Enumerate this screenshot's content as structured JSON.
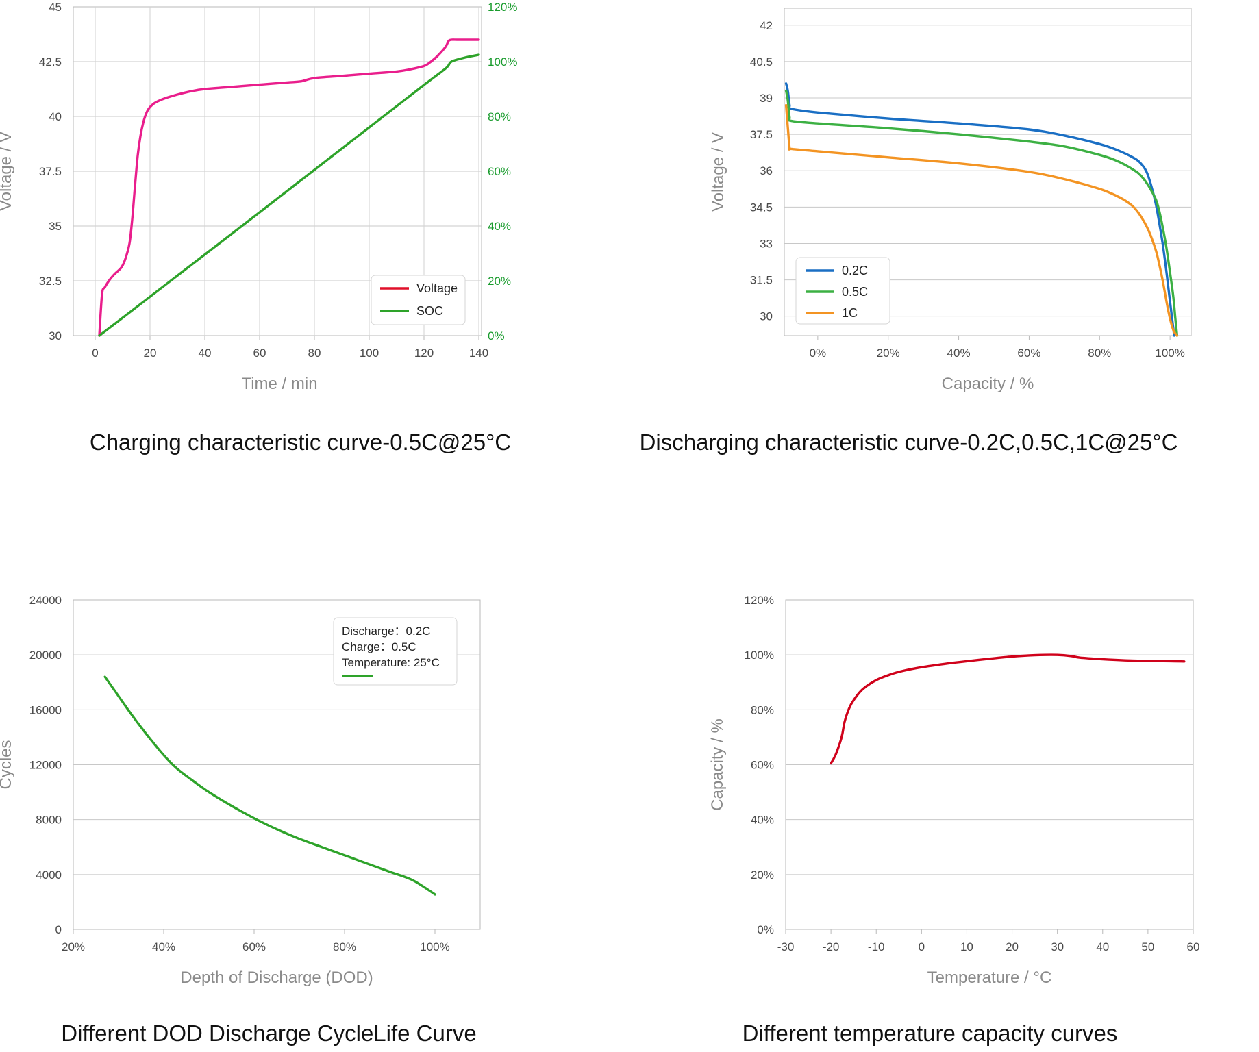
{
  "chart_data": [
    {
      "type": "line",
      "title": "Charging characteristic curve-0.5C@25°C",
      "xlabel": "Time / min",
      "ylabel": "Voltage / V",
      "xlim": [
        -8,
        141
      ],
      "x_ticks": [
        "0",
        "20",
        "40",
        "60",
        "80",
        "100",
        "120",
        "140"
      ],
      "ylim": [
        30,
        45
      ],
      "y_ticks": [
        "30",
        "32.5",
        "35",
        "37.5",
        "40",
        "42.5",
        "45"
      ],
      "y2lim": [
        0,
        120
      ],
      "y2_ticks": [
        "0%",
        "20%",
        "40%",
        "60%",
        "80%",
        "100%",
        "120%"
      ],
      "grid": true,
      "legend": "bottom-right",
      "series": [
        {
          "name": "Voltage",
          "axis": "left",
          "color": "#e91e8c",
          "legend_color": "#e0102a",
          "x": [
            1.5,
            2.5,
            3.5,
            5,
            7,
            9.5,
            11,
            12.5,
            13.5,
            14.5,
            15.5,
            16.5,
            17.5,
            18.5,
            19.5,
            21,
            23,
            26,
            30,
            35,
            40,
            50,
            60,
            70,
            75,
            80,
            90,
            100,
            110,
            115,
            120,
            122,
            124,
            126,
            128,
            129,
            130,
            132,
            135,
            140
          ],
          "y": [
            30,
            31.9,
            32.2,
            32.5,
            32.8,
            33.1,
            33.5,
            34.2,
            35.3,
            36.8,
            38.2,
            39.1,
            39.7,
            40.1,
            40.35,
            40.55,
            40.7,
            40.85,
            41.0,
            41.15,
            41.25,
            41.35,
            41.45,
            41.55,
            41.6,
            41.75,
            41.85,
            41.95,
            42.05,
            42.15,
            42.3,
            42.45,
            42.65,
            42.9,
            43.2,
            43.45,
            43.5,
            43.5,
            43.5,
            43.5
          ]
        },
        {
          "name": "SOC",
          "axis": "right",
          "color": "#2ea32a",
          "legend_color": "#2ea32a",
          "x": [
            1.5,
            10,
            20,
            40,
            60,
            80,
            100,
            120,
            128,
            130,
            135,
            140
          ],
          "y": [
            0,
            6.5,
            14.2,
            29.6,
            45,
            60.5,
            76,
            91.5,
            97.6,
            100,
            101.5,
            102.5
          ]
        }
      ]
    },
    {
      "type": "line",
      "title": "Discharging characteristic curve-0.2C,0.5C,1C@25°C",
      "xlabel": "Capacity / %",
      "ylabel": "Voltage / V",
      "xlim": [
        -9.5,
        106
      ],
      "x_ticks": [
        "0%",
        "20%",
        "40%",
        "60%",
        "80%",
        "100%"
      ],
      "ylim": [
        29.2,
        42.7
      ],
      "y_ticks": [
        "30",
        "31.5",
        "33",
        "34.5",
        "36",
        "37.5",
        "39",
        "40.5",
        "42"
      ],
      "grid": "horizontal",
      "legend": "bottom-left",
      "series": [
        {
          "name": "0.2C",
          "color": "#1a6fc4",
          "x": [
            -9,
            -8.5,
            -8,
            -7.5,
            0,
            20,
            40,
            60,
            70,
            80,
            85,
            90,
            92,
            93.5,
            95,
            96,
            97,
            98,
            99,
            100,
            100.5,
            101,
            101.2
          ],
          "y": [
            39.6,
            39.3,
            38.7,
            38.55,
            38.4,
            38.15,
            37.95,
            37.7,
            37.45,
            37.1,
            36.85,
            36.5,
            36.25,
            35.9,
            35.2,
            34.6,
            33.8,
            32.9,
            31.8,
            30.6,
            30.0,
            29.4,
            29.2
          ]
        },
        {
          "name": "0.5C",
          "color": "#3cb043",
          "x": [
            -9,
            -8.5,
            -8,
            -7.5,
            0,
            20,
            40,
            60,
            70,
            80,
            85,
            90,
            92,
            94,
            96,
            97,
            98,
            99,
            100,
            101,
            101.5,
            102
          ],
          "y": [
            39.3,
            38.9,
            38.2,
            38.05,
            37.95,
            37.75,
            37.5,
            37.2,
            37.0,
            36.65,
            36.4,
            36.0,
            35.75,
            35.35,
            34.8,
            34.3,
            33.6,
            32.8,
            31.8,
            30.7,
            29.9,
            29.2
          ]
        },
        {
          "name": "1C",
          "color": "#f39423",
          "x": [
            -9,
            -8.5,
            -8,
            -7.5,
            0,
            20,
            40,
            60,
            70,
            80,
            85,
            88,
            90,
            92,
            94,
            96,
            97,
            98,
            99,
            100,
            101,
            102
          ],
          "y": [
            38.7,
            37.8,
            36.95,
            36.9,
            36.8,
            36.55,
            36.3,
            35.95,
            35.65,
            35.25,
            34.95,
            34.7,
            34.45,
            34.05,
            33.5,
            32.7,
            32.1,
            31.4,
            30.6,
            29.9,
            29.4,
            29.2
          ]
        }
      ]
    },
    {
      "type": "line",
      "title": "Different DOD Discharge CycleLife Curve",
      "xlabel": "Depth of Discharge (DOD)",
      "ylabel": "Cycles",
      "xlim": [
        20,
        110
      ],
      "x_ticks": [
        "20%",
        "40%",
        "60%",
        "80%",
        "100%"
      ],
      "ylim": [
        0,
        24000
      ],
      "y_ticks": [
        "0",
        "4000",
        "8000",
        "12000",
        "16000",
        "20000",
        "24000"
      ],
      "grid": "horizontal",
      "legend": "top-right",
      "legend_lines": [
        "Discharge：0.2C",
        "Charge：0.5C",
        "Temperature: 25°C"
      ],
      "series": [
        {
          "color": "#2ea32a",
          "x": [
            27,
            30,
            33,
            36,
            40,
            43,
            47,
            50,
            55,
            60,
            65,
            70,
            75,
            80,
            85,
            90,
            95,
            100
          ],
          "y": [
            18400,
            17000,
            15600,
            14300,
            12700,
            11700,
            10700,
            10000,
            9000,
            8100,
            7300,
            6600,
            6000,
            5400,
            4800,
            4200,
            3600,
            2550
          ]
        }
      ]
    },
    {
      "type": "line",
      "title": "Different temperature capacity curves",
      "xlabel": "Temperature / °C",
      "ylabel": "Capacity / %",
      "xlim": [
        -30,
        60
      ],
      "x_ticks": [
        "-30",
        "-20",
        "-10",
        "0",
        "10",
        "20",
        "30",
        "40",
        "50",
        "60"
      ],
      "ylim": [
        0,
        120
      ],
      "y_ticks": [
        "0%",
        "20%",
        "40%",
        "60%",
        "80%",
        "100%",
        "120%"
      ],
      "grid": "horizontal",
      "series": [
        {
          "color": "#d0021b",
          "x": [
            -20,
            -19,
            -18,
            -17.5,
            -17,
            -16,
            -15,
            -13,
            -10,
            -7,
            -4,
            0,
            5,
            10,
            15,
            20,
            25,
            30,
            33,
            35,
            40,
            45,
            50,
            55,
            58
          ],
          "y": [
            60.5,
            63.5,
            68,
            71,
            75.5,
            80.5,
            83.5,
            87.5,
            90.8,
            92.8,
            94.2,
            95.5,
            96.7,
            97.7,
            98.6,
            99.4,
            99.9,
            100,
            99.6,
            99,
            98.4,
            98,
            97.8,
            97.7,
            97.6
          ]
        }
      ]
    }
  ]
}
